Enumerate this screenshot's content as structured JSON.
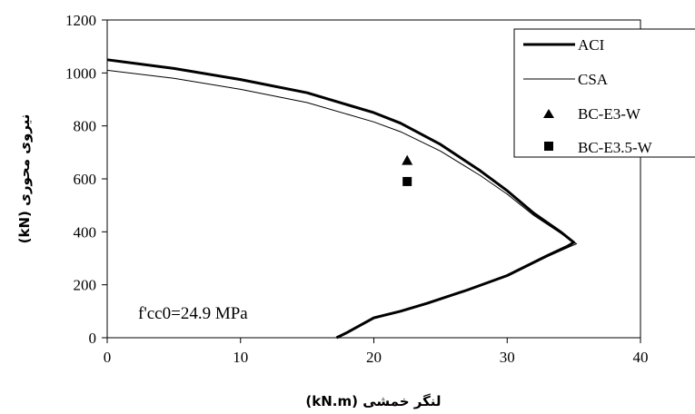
{
  "chart_data": {
    "type": "line",
    "xlabel": "لنگر خمشی (kN.m)",
    "ylabel": "نیروی محوری (kN)",
    "xlim": [
      0,
      40
    ],
    "ylim": [
      0,
      1200
    ],
    "xticks": [
      0,
      10,
      20,
      30,
      40
    ],
    "yticks": [
      0,
      200,
      400,
      600,
      800,
      1000,
      1200
    ],
    "grid": false,
    "legend_position": "top-right",
    "annotation": "f'cc0=24.9 MPa",
    "series": [
      {
        "name": "ACI",
        "style": "line-thick",
        "color": "#000000",
        "points": [
          [
            0,
            1050
          ],
          [
            5,
            1017
          ],
          [
            10,
            975
          ],
          [
            15,
            925
          ],
          [
            20,
            850
          ],
          [
            22,
            810
          ],
          [
            25,
            730
          ],
          [
            28,
            630
          ],
          [
            30,
            555
          ],
          [
            32,
            470
          ],
          [
            34,
            400
          ],
          [
            35,
            360
          ],
          [
            34.5,
            345
          ],
          [
            33,
            310
          ],
          [
            30,
            235
          ],
          [
            27,
            180
          ],
          [
            24,
            130
          ],
          [
            22,
            100
          ],
          [
            20,
            75
          ],
          [
            18,
            20
          ],
          [
            17.2,
            0
          ]
        ]
      },
      {
        "name": "CSA",
        "style": "line-thin",
        "color": "#000000",
        "points": [
          [
            0,
            1010
          ],
          [
            5,
            980
          ],
          [
            10,
            938
          ],
          [
            15,
            888
          ],
          [
            20,
            815
          ],
          [
            22,
            778
          ],
          [
            25,
            705
          ],
          [
            28,
            612
          ],
          [
            30,
            542
          ],
          [
            32,
            462
          ],
          [
            34,
            395
          ],
          [
            35.2,
            355
          ],
          [
            34.6,
            342
          ],
          [
            33,
            306
          ],
          [
            30,
            232
          ],
          [
            27,
            178
          ],
          [
            24,
            128
          ],
          [
            22,
            98
          ],
          [
            20,
            72
          ],
          [
            18,
            18
          ],
          [
            17.3,
            0
          ]
        ]
      },
      {
        "name": "BC-E3-W",
        "style": "marker-triangle",
        "color": "#000000",
        "points": [
          [
            22.5,
            670
          ]
        ]
      },
      {
        "name": "BC-E3.5-W",
        "style": "marker-square",
        "color": "#000000",
        "points": [
          [
            22.5,
            590
          ]
        ]
      }
    ]
  }
}
